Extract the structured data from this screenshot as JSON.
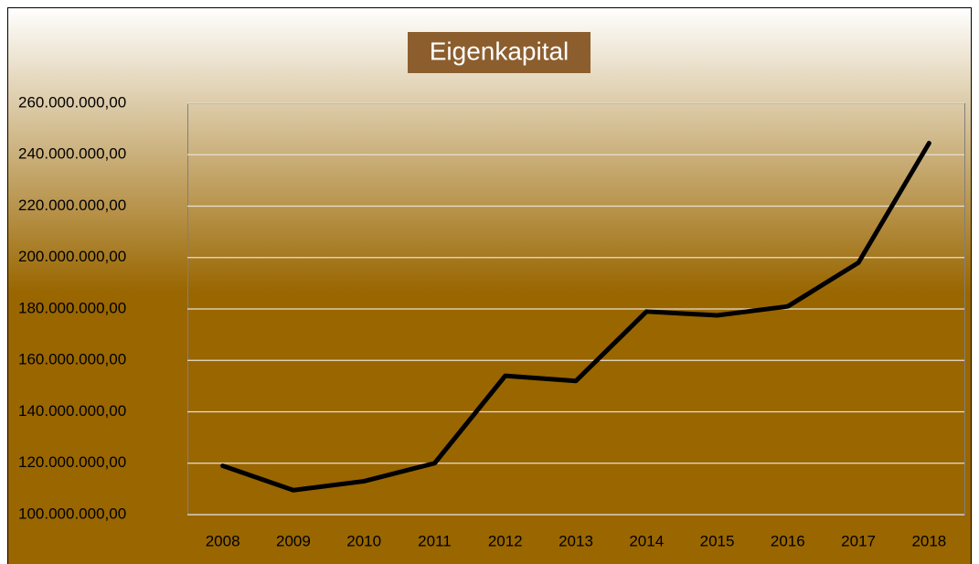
{
  "chart_data": {
    "type": "line",
    "title": "Eigenkapital",
    "categories": [
      "2008",
      "2009",
      "2010",
      "2011",
      "2012",
      "2013",
      "2014",
      "2015",
      "2016",
      "2017",
      "2018"
    ],
    "series": [
      {
        "name": "Eigenkapital",
        "color": "#000000",
        "values": [
          119000000,
          109500000,
          113000000,
          120000000,
          154000000,
          152000000,
          179000000,
          177500000,
          181000000,
          198000000,
          244500000
        ]
      }
    ],
    "ylim": [
      100000000,
      260000000
    ],
    "yticks": [
      {
        "value": 100000000,
        "label": "100.000.000,00"
      },
      {
        "value": 120000000,
        "label": "120.000.000,00"
      },
      {
        "value": 140000000,
        "label": "140.000.000,00"
      },
      {
        "value": 160000000,
        "label": "160.000.000,00"
      },
      {
        "value": 180000000,
        "label": "180.000.000,00"
      },
      {
        "value": 200000000,
        "label": "200.000.000,00"
      },
      {
        "value": 220000000,
        "label": "220.000.000,00"
      },
      {
        "value": 240000000,
        "label": "240.000.000,00"
      },
      {
        "value": 260000000,
        "label": "260.000.000,00"
      }
    ],
    "grid": true
  }
}
